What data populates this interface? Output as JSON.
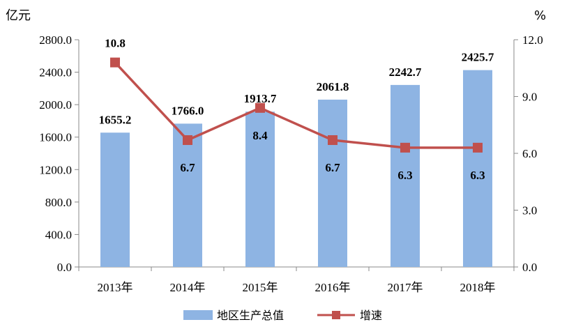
{
  "chart_data": {
    "type": "bar",
    "categories": [
      "2013年",
      "2014年",
      "2015年",
      "2016年",
      "2017年",
      "2018年"
    ],
    "series": [
      {
        "name": "地区生产总值",
        "type": "bar",
        "axis": "left",
        "values": [
          1655.2,
          1766.0,
          1913.7,
          2061.8,
          2242.7,
          2425.7
        ],
        "color": "#8EB4E3"
      },
      {
        "name": "增速",
        "type": "line",
        "axis": "right",
        "values": [
          10.8,
          6.7,
          8.4,
          6.7,
          6.3,
          6.3
        ],
        "color": "#C0504D"
      }
    ],
    "y_left": {
      "unit": "亿元",
      "range": [
        0,
        2800
      ],
      "ticks": [
        "0.0",
        "400.0",
        "800.0",
        "1200.0",
        "1600.0",
        "2000.0",
        "2400.0",
        "2800.0"
      ]
    },
    "y_right": {
      "unit": "%",
      "range": [
        0,
        12
      ],
      "ticks": [
        "0.0",
        "3.0",
        "6.0",
        "9.0",
        "12.0"
      ]
    },
    "bar_labels": [
      "1655.2",
      "1766.0",
      "1913.7",
      "2061.8",
      "2242.7",
      "2425.7"
    ],
    "line_labels": [
      "10.8",
      "6.7",
      "8.4",
      "6.7",
      "6.3",
      "6.3"
    ],
    "grid": false,
    "legend_position": "bottom"
  }
}
